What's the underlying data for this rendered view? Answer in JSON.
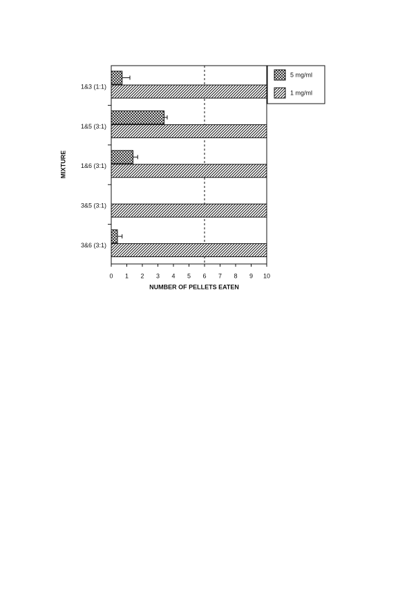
{
  "chart_data": {
    "type": "hbar",
    "xlabel": "NUMBER OF PELLETS EATEN",
    "ylabel": "MIXTURE",
    "categories": [
      "1&3 (1:1)",
      "1&5 (3:1)",
      "1&6 (3:1)",
      "3&5 (3:1)",
      "3&6 (3:1)"
    ],
    "series": [
      {
        "name": "5 mg/ml",
        "color": "#111111",
        "pattern": "crosshatch",
        "values": [
          0.7,
          3.4,
          1.4,
          0,
          0.4
        ],
        "errors": [
          0.5,
          0.2,
          0.3,
          null,
          0.3
        ]
      },
      {
        "name": "1 mg/ml",
        "color": "#111111",
        "pattern": "hatch",
        "values": [
          10,
          10,
          10,
          10,
          10
        ]
      }
    ],
    "xlim": [
      0,
      10
    ],
    "xticks": [
      0,
      1,
      2,
      3,
      4,
      5,
      6,
      7,
      8,
      9,
      10
    ],
    "reference_line": 6,
    "legend": "upper-right-outside"
  }
}
